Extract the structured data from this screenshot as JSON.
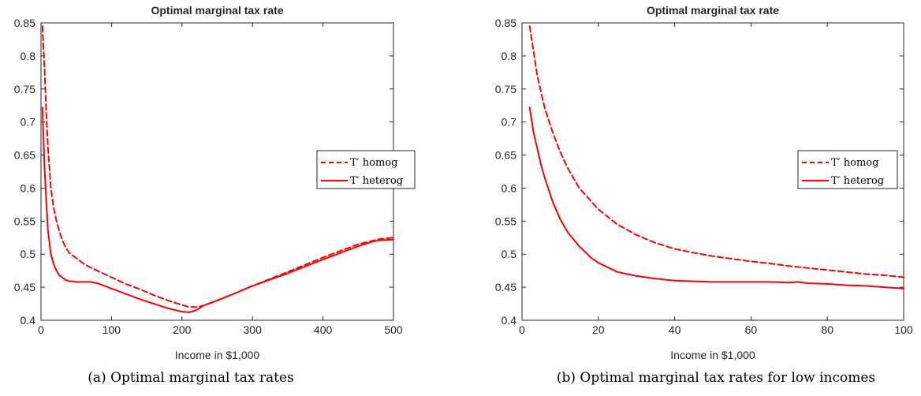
{
  "chart_data": [
    {
      "type": "line",
      "title": "Optimal marginal tax rate",
      "xlabel": "Income in $1,000",
      "ylabel": "",
      "xlim": [
        0,
        500
      ],
      "ylim": [
        0.4,
        0.85
      ],
      "xticks": [
        "0",
        "100",
        "200",
        "300",
        "400",
        "500"
      ],
      "yticks": [
        "0.4",
        "0.45",
        "0.5",
        "0.55",
        "0.6",
        "0.65",
        "0.7",
        "0.75",
        "0.8",
        "0.85"
      ],
      "grid": false,
      "legend_position": "right",
      "caption": "(a) Optimal marginal tax rates",
      "series": [
        {
          "name": "T′ homog",
          "style": "dashed",
          "color": "#ff0000",
          "x": [
            2,
            5,
            8,
            10,
            14,
            18,
            22,
            26,
            30,
            35,
            40,
            45,
            50,
            60,
            70,
            80,
            90,
            100,
            120,
            140,
            160,
            180,
            200,
            210,
            220,
            230,
            250,
            280,
            300,
            350,
            400,
            450,
            480,
            500
          ],
          "y": [
            0.845,
            0.78,
            0.7,
            0.66,
            0.6,
            0.57,
            0.55,
            0.535,
            0.522,
            0.51,
            0.502,
            0.498,
            0.494,
            0.486,
            0.48,
            0.475,
            0.47,
            0.465,
            0.455,
            0.447,
            0.438,
            0.43,
            0.423,
            0.42,
            0.42,
            0.422,
            0.43,
            0.443,
            0.452,
            0.473,
            0.495,
            0.515,
            0.523,
            0.525
          ]
        },
        {
          "name": "T′ heterog",
          "style": "solid",
          "color": "#ff0000",
          "x": [
            2,
            5,
            8,
            10,
            14,
            18,
            22,
            26,
            30,
            35,
            40,
            45,
            50,
            60,
            70,
            80,
            90,
            100,
            120,
            140,
            160,
            180,
            200,
            210,
            220,
            230,
            250,
            280,
            300,
            350,
            400,
            450,
            470,
            480,
            500
          ],
          "y": [
            0.722,
            0.63,
            0.57,
            0.535,
            0.5,
            0.485,
            0.475,
            0.468,
            0.465,
            0.461,
            0.459,
            0.459,
            0.458,
            0.458,
            0.458,
            0.456,
            0.452,
            0.448,
            0.44,
            0.432,
            0.425,
            0.418,
            0.413,
            0.412,
            0.415,
            0.422,
            0.43,
            0.443,
            0.452,
            0.471,
            0.492,
            0.512,
            0.519,
            0.521,
            0.522
          ]
        }
      ]
    },
    {
      "type": "line",
      "title": "Optimal marginal tax rate",
      "xlabel": "Income in $1,000",
      "ylabel": "",
      "xlim": [
        0,
        100
      ],
      "ylim": [
        0.4,
        0.85
      ],
      "xticks": [
        "0",
        "20",
        "40",
        "60",
        "80",
        "100"
      ],
      "yticks": [
        "0.4",
        "0.45",
        "0.5",
        "0.55",
        "0.6",
        "0.65",
        "0.7",
        "0.75",
        "0.8",
        "0.85"
      ],
      "grid": false,
      "legend_position": "right",
      "caption": "(b) Optimal marginal tax rates for low incomes",
      "series": [
        {
          "name": "T′ homog",
          "style": "dashed",
          "color": "#ff0000",
          "x": [
            2,
            4,
            6,
            8,
            10,
            12,
            15,
            20,
            25,
            30,
            35,
            40,
            45,
            50,
            55,
            60,
            65,
            70,
            75,
            80,
            85,
            90,
            95,
            100
          ],
          "y": [
            0.845,
            0.77,
            0.72,
            0.685,
            0.655,
            0.63,
            0.6,
            0.568,
            0.545,
            0.529,
            0.517,
            0.508,
            0.502,
            0.497,
            0.493,
            0.489,
            0.486,
            0.482,
            0.479,
            0.476,
            0.473,
            0.47,
            0.468,
            0.465
          ]
        },
        {
          "name": "T′ heterog",
          "style": "solid",
          "color": "#ff0000",
          "x": [
            2,
            3,
            4,
            5,
            6,
            8,
            10,
            12,
            15,
            18,
            20,
            25,
            30,
            35,
            40,
            45,
            50,
            55,
            60,
            65,
            70,
            72,
            75,
            80,
            85,
            90,
            95,
            100
          ],
          "y": [
            0.722,
            0.685,
            0.66,
            0.635,
            0.615,
            0.58,
            0.553,
            0.533,
            0.512,
            0.495,
            0.487,
            0.473,
            0.467,
            0.463,
            0.46,
            0.459,
            0.458,
            0.458,
            0.458,
            0.458,
            0.457,
            0.458,
            0.456,
            0.455,
            0.453,
            0.452,
            0.45,
            0.448
          ]
        }
      ]
    }
  ]
}
